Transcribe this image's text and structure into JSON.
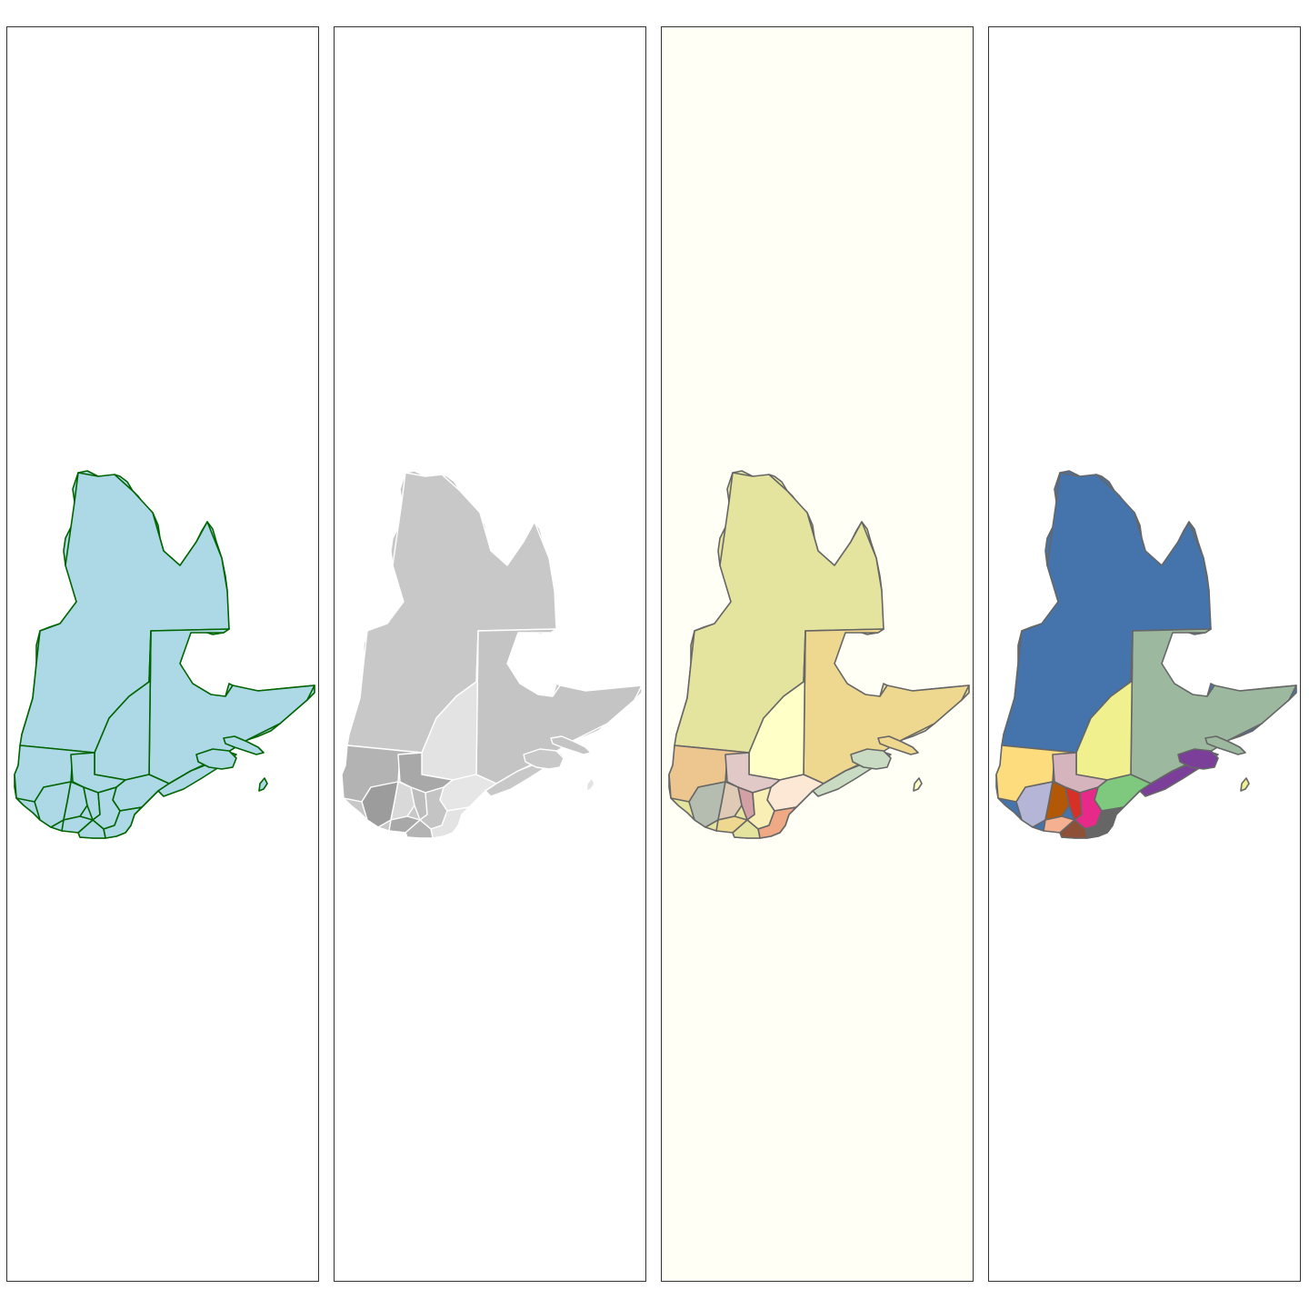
{
  "panels": [
    {
      "style": "single-fill",
      "background": "#ffffff",
      "fill": "#add8e6",
      "border": "#006400",
      "region_colors": [
        "#add8e6"
      ]
    },
    {
      "style": "greyscale",
      "background": "#ffffff",
      "fill": "#c8c8c8",
      "border": "#ffffff",
      "region_colors": [
        "#c8c8c8",
        "#c4c4c4",
        "#e3e3e3",
        "#b3b3b3",
        "#a8a8a8",
        "#9c9c9c",
        "#d9d9d9",
        "#bdbdbd",
        "#e6e6e6"
      ]
    },
    {
      "style": "pastel",
      "background": "#fffff5",
      "fill": "#e4e49e",
      "border": "#666666",
      "region_colors": [
        "#e4e49e",
        "#eed78e",
        "#ffffc8",
        "#ecc58f",
        "#e1c9c7",
        "#b5bdb1",
        "#dfcbb5",
        "#d3a0a6",
        "#fde7d5",
        "#c9dcc3",
        "#f9efb5",
        "#efa985"
      ]
    },
    {
      "style": "categorical",
      "background": "#ffffff",
      "fill": "#4474ab",
      "border": "#666666",
      "region_colors": [
        "#4474ab",
        "#9cb9a0",
        "#f0f08e",
        "#fddc7e",
        "#d5b4bd",
        "#b5b5d7",
        "#b35806",
        "#d73027",
        "#7fc97f",
        "#7b3f99",
        "#e7298a",
        "#666666",
        "#8c5137",
        "#f4b090"
      ]
    }
  ]
}
